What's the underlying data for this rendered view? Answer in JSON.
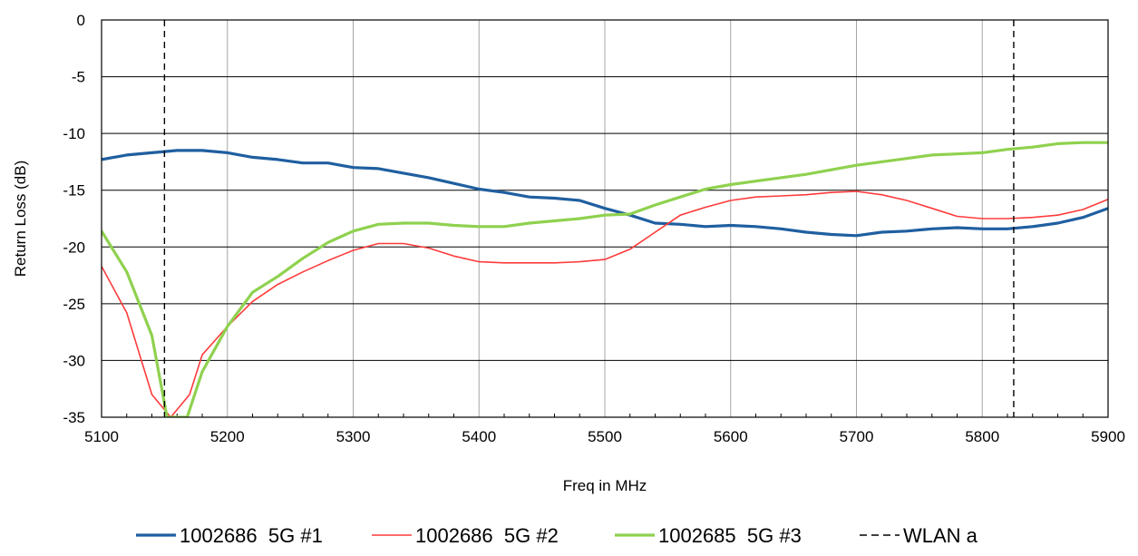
{
  "chart_data": {
    "type": "line",
    "title": "",
    "xlabel": "Freq in MHz",
    "ylabel": "Return Loss (dB)",
    "xlim": [
      5100,
      5900
    ],
    "ylim": [
      -35,
      0
    ],
    "x_ticks": [
      5100,
      5200,
      5300,
      5400,
      5500,
      5600,
      5700,
      5800,
      5900
    ],
    "y_ticks": [
      0,
      -5,
      -10,
      -15,
      -20,
      -25,
      -30,
      -35
    ],
    "grid": true,
    "legend_position": "bottom",
    "series": [
      {
        "name": "1002686  5G #1",
        "color": "#1f5fa0",
        "style": "solid",
        "points": [
          [
            5100,
            -12.3
          ],
          [
            5120,
            -11.9
          ],
          [
            5140,
            -11.7
          ],
          [
            5160,
            -11.5
          ],
          [
            5180,
            -11.5
          ],
          [
            5200,
            -11.7
          ],
          [
            5220,
            -12.1
          ],
          [
            5240,
            -12.3
          ],
          [
            5260,
            -12.6
          ],
          [
            5280,
            -12.6
          ],
          [
            5300,
            -13.0
          ],
          [
            5320,
            -13.1
          ],
          [
            5340,
            -13.5
          ],
          [
            5360,
            -13.9
          ],
          [
            5380,
            -14.4
          ],
          [
            5400,
            -14.9
          ],
          [
            5420,
            -15.2
          ],
          [
            5440,
            -15.6
          ],
          [
            5460,
            -15.7
          ],
          [
            5480,
            -15.9
          ],
          [
            5500,
            -16.6
          ],
          [
            5520,
            -17.2
          ],
          [
            5540,
            -17.9
          ],
          [
            5560,
            -18.0
          ],
          [
            5580,
            -18.2
          ],
          [
            5600,
            -18.1
          ],
          [
            5620,
            -18.2
          ],
          [
            5640,
            -18.4
          ],
          [
            5660,
            -18.7
          ],
          [
            5680,
            -18.9
          ],
          [
            5700,
            -19.0
          ],
          [
            5720,
            -18.7
          ],
          [
            5740,
            -18.6
          ],
          [
            5760,
            -18.4
          ],
          [
            5780,
            -18.3
          ],
          [
            5800,
            -18.4
          ],
          [
            5820,
            -18.4
          ],
          [
            5840,
            -18.2
          ],
          [
            5860,
            -17.9
          ],
          [
            5880,
            -17.4
          ],
          [
            5900,
            -16.6
          ]
        ]
      },
      {
        "name": "1002686  5G #2",
        "color": "#ff3b3b",
        "style": "solid",
        "points": [
          [
            5100,
            -21.7
          ],
          [
            5120,
            -25.8
          ],
          [
            5140,
            -33.0
          ],
          [
            5155,
            -35.0
          ],
          [
            5170,
            -33.0
          ],
          [
            5180,
            -29.5
          ],
          [
            5200,
            -27.0
          ],
          [
            5220,
            -24.8
          ],
          [
            5240,
            -23.3
          ],
          [
            5260,
            -22.2
          ],
          [
            5280,
            -21.2
          ],
          [
            5300,
            -20.3
          ],
          [
            5320,
            -19.7
          ],
          [
            5340,
            -19.7
          ],
          [
            5360,
            -20.1
          ],
          [
            5380,
            -20.8
          ],
          [
            5400,
            -21.3
          ],
          [
            5420,
            -21.4
          ],
          [
            5440,
            -21.4
          ],
          [
            5460,
            -21.4
          ],
          [
            5480,
            -21.3
          ],
          [
            5500,
            -21.1
          ],
          [
            5520,
            -20.2
          ],
          [
            5540,
            -18.7
          ],
          [
            5560,
            -17.2
          ],
          [
            5580,
            -16.5
          ],
          [
            5600,
            -15.9
          ],
          [
            5620,
            -15.6
          ],
          [
            5640,
            -15.5
          ],
          [
            5660,
            -15.4
          ],
          [
            5680,
            -15.2
          ],
          [
            5700,
            -15.1
          ],
          [
            5720,
            -15.4
          ],
          [
            5740,
            -15.9
          ],
          [
            5760,
            -16.6
          ],
          [
            5780,
            -17.3
          ],
          [
            5800,
            -17.5
          ],
          [
            5820,
            -17.5
          ],
          [
            5840,
            -17.4
          ],
          [
            5860,
            -17.2
          ],
          [
            5880,
            -16.7
          ],
          [
            5900,
            -15.8
          ]
        ]
      },
      {
        "name": "1002685  5G #3",
        "color": "#8fd14f",
        "style": "solid",
        "points": [
          [
            5100,
            -18.6
          ],
          [
            5120,
            -22.2
          ],
          [
            5140,
            -27.8
          ],
          [
            5152,
            -35.0
          ],
          [
            5168,
            -35.0
          ],
          [
            5180,
            -31.0
          ],
          [
            5200,
            -27.0
          ],
          [
            5220,
            -24.0
          ],
          [
            5240,
            -22.6
          ],
          [
            5260,
            -21.0
          ],
          [
            5280,
            -19.6
          ],
          [
            5300,
            -18.6
          ],
          [
            5320,
            -18.0
          ],
          [
            5340,
            -17.9
          ],
          [
            5360,
            -17.9
          ],
          [
            5380,
            -18.1
          ],
          [
            5400,
            -18.2
          ],
          [
            5420,
            -18.2
          ],
          [
            5440,
            -17.9
          ],
          [
            5460,
            -17.7
          ],
          [
            5480,
            -17.5
          ],
          [
            5500,
            -17.2
          ],
          [
            5520,
            -17.1
          ],
          [
            5540,
            -16.3
          ],
          [
            5560,
            -15.6
          ],
          [
            5580,
            -14.9
          ],
          [
            5600,
            -14.5
          ],
          [
            5620,
            -14.2
          ],
          [
            5640,
            -13.9
          ],
          [
            5660,
            -13.6
          ],
          [
            5680,
            -13.2
          ],
          [
            5700,
            -12.8
          ],
          [
            5720,
            -12.5
          ],
          [
            5740,
            -12.2
          ],
          [
            5760,
            -11.9
          ],
          [
            5780,
            -11.8
          ],
          [
            5800,
            -11.7
          ],
          [
            5820,
            -11.4
          ],
          [
            5840,
            -11.2
          ],
          [
            5860,
            -10.9
          ],
          [
            5880,
            -10.8
          ],
          [
            5900,
            -10.8
          ]
        ]
      },
      {
        "name": "WLAN a",
        "color": "#000000",
        "style": "dashed",
        "vertical_lines_x": [
          5150,
          5825
        ]
      }
    ]
  }
}
